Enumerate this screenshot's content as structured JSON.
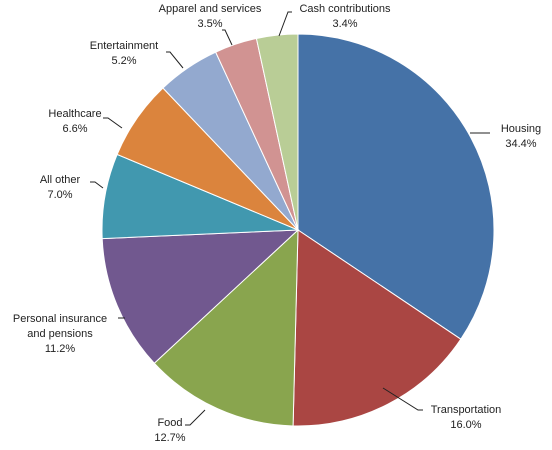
{
  "chart_data": {
    "type": "pie",
    "start_angle_deg": 0,
    "direction": "clockwise",
    "slices": [
      {
        "label": "Housing",
        "value": 34.4,
        "value_label": "34.4%",
        "color": "#4572A7"
      },
      {
        "label": "Transportation",
        "value": 16.0,
        "value_label": "16.0%",
        "color": "#AA4643"
      },
      {
        "label": "Food",
        "value": 12.7,
        "value_label": "12.7%",
        "color": "#89A54E"
      },
      {
        "label": "Personal insurance and pensions",
        "value": 11.2,
        "value_label": "11.2%",
        "color": "#71588F"
      },
      {
        "label": "All other",
        "value": 7.0,
        "value_label": "7.0%",
        "color": "#4198AF"
      },
      {
        "label": "Healthcare",
        "value": 6.6,
        "value_label": "6.6%",
        "color": "#DB843D"
      },
      {
        "label": "Entertainment",
        "value": 5.2,
        "value_label": "5.2%",
        "color": "#93A9CF"
      },
      {
        "label": "Apparel and services",
        "value": 3.5,
        "value_label": "3.5%",
        "color": "#D19392"
      },
      {
        "label": "Cash contributions",
        "value": 3.4,
        "value_label": "3.4%",
        "color": "#B9CD96"
      }
    ]
  }
}
